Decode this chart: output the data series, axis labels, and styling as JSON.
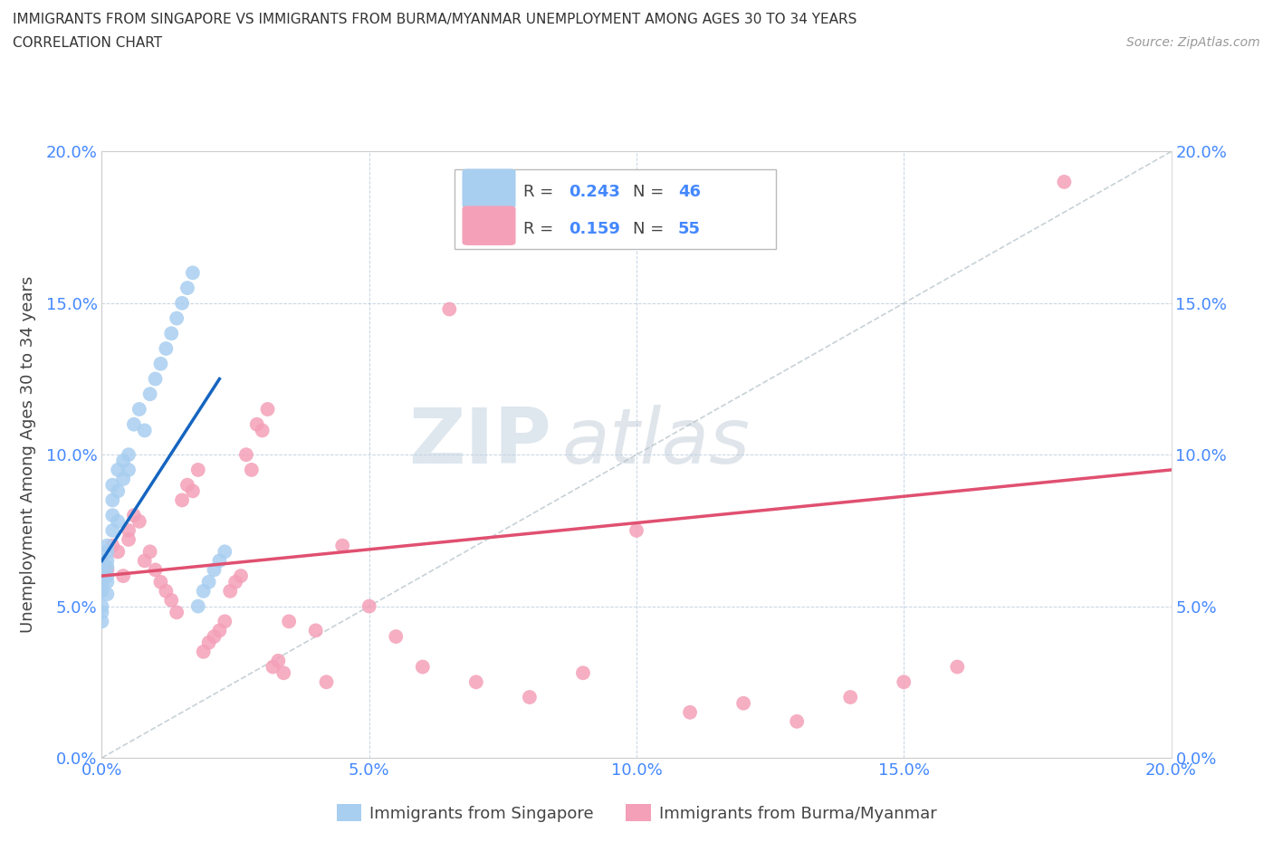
{
  "title_line1": "IMMIGRANTS FROM SINGAPORE VS IMMIGRANTS FROM BURMA/MYANMAR UNEMPLOYMENT AMONG AGES 30 TO 34 YEARS",
  "title_line2": "CORRELATION CHART",
  "source_text": "Source: ZipAtlas.com",
  "ylabel": "Unemployment Among Ages 30 to 34 years",
  "watermark_zip": "ZIP",
  "watermark_atlas": "atlas",
  "legend_label1": "Immigrants from Singapore",
  "legend_label2": "Immigrants from Burma/Myanmar",
  "R1": 0.243,
  "N1": 46,
  "R2": 0.159,
  "N2": 55,
  "color_sg": "#a8cef0",
  "color_sg_line": "#1565c0",
  "color_burma": "#f4a0b8",
  "color_burma_line": "#e05070",
  "color_diag": "#b0bec5",
  "xlim": [
    0.0,
    0.2
  ],
  "ylim": [
    0.0,
    0.2
  ],
  "xticks": [
    0.0,
    0.05,
    0.1,
    0.15,
    0.2
  ],
  "yticks": [
    0.0,
    0.05,
    0.1,
    0.15,
    0.2
  ],
  "sg_x": [
    0.0,
    0.0,
    0.0,
    0.0,
    0.0,
    0.0,
    0.0,
    0.0,
    0.0,
    0.0,
    0.001,
    0.001,
    0.001,
    0.001,
    0.001,
    0.001,
    0.001,
    0.002,
    0.002,
    0.002,
    0.002,
    0.003,
    0.003,
    0.003,
    0.004,
    0.004,
    0.005,
    0.005,
    0.006,
    0.007,
    0.008,
    0.009,
    0.01,
    0.011,
    0.012,
    0.013,
    0.014,
    0.015,
    0.016,
    0.017,
    0.018,
    0.019,
    0.02,
    0.021,
    0.022,
    0.023
  ],
  "sg_y": [
    0.06,
    0.055,
    0.065,
    0.057,
    0.058,
    0.062,
    0.056,
    0.05,
    0.048,
    0.045,
    0.068,
    0.054,
    0.063,
    0.07,
    0.065,
    0.06,
    0.058,
    0.09,
    0.085,
    0.08,
    0.075,
    0.095,
    0.088,
    0.078,
    0.098,
    0.092,
    0.1,
    0.095,
    0.11,
    0.115,
    0.108,
    0.12,
    0.125,
    0.13,
    0.135,
    0.14,
    0.145,
    0.15,
    0.155,
    0.16,
    0.05,
    0.055,
    0.058,
    0.062,
    0.065,
    0.068
  ],
  "burma_x": [
    0.0,
    0.001,
    0.002,
    0.003,
    0.004,
    0.005,
    0.005,
    0.006,
    0.007,
    0.008,
    0.009,
    0.01,
    0.011,
    0.012,
    0.013,
    0.014,
    0.015,
    0.016,
    0.017,
    0.018,
    0.019,
    0.02,
    0.021,
    0.022,
    0.023,
    0.024,
    0.025,
    0.026,
    0.027,
    0.028,
    0.029,
    0.03,
    0.031,
    0.032,
    0.033,
    0.034,
    0.035,
    0.04,
    0.042,
    0.045,
    0.05,
    0.055,
    0.06,
    0.065,
    0.07,
    0.08,
    0.09,
    0.1,
    0.11,
    0.12,
    0.13,
    0.14,
    0.15,
    0.16,
    0.18
  ],
  "burma_y": [
    0.065,
    0.062,
    0.07,
    0.068,
    0.06,
    0.075,
    0.072,
    0.08,
    0.078,
    0.065,
    0.068,
    0.062,
    0.058,
    0.055,
    0.052,
    0.048,
    0.085,
    0.09,
    0.088,
    0.095,
    0.035,
    0.038,
    0.04,
    0.042,
    0.045,
    0.055,
    0.058,
    0.06,
    0.1,
    0.095,
    0.11,
    0.108,
    0.115,
    0.03,
    0.032,
    0.028,
    0.045,
    0.042,
    0.025,
    0.07,
    0.05,
    0.04,
    0.03,
    0.148,
    0.025,
    0.02,
    0.028,
    0.075,
    0.015,
    0.018,
    0.012,
    0.02,
    0.025,
    0.03,
    0.19
  ],
  "sg_line_x0": 0.0,
  "sg_line_x1": 0.022,
  "sg_line_y0": 0.065,
  "sg_line_y1": 0.125,
  "burma_line_x0": 0.0,
  "burma_line_x1": 0.2,
  "burma_line_y0": 0.06,
  "burma_line_y1": 0.095
}
